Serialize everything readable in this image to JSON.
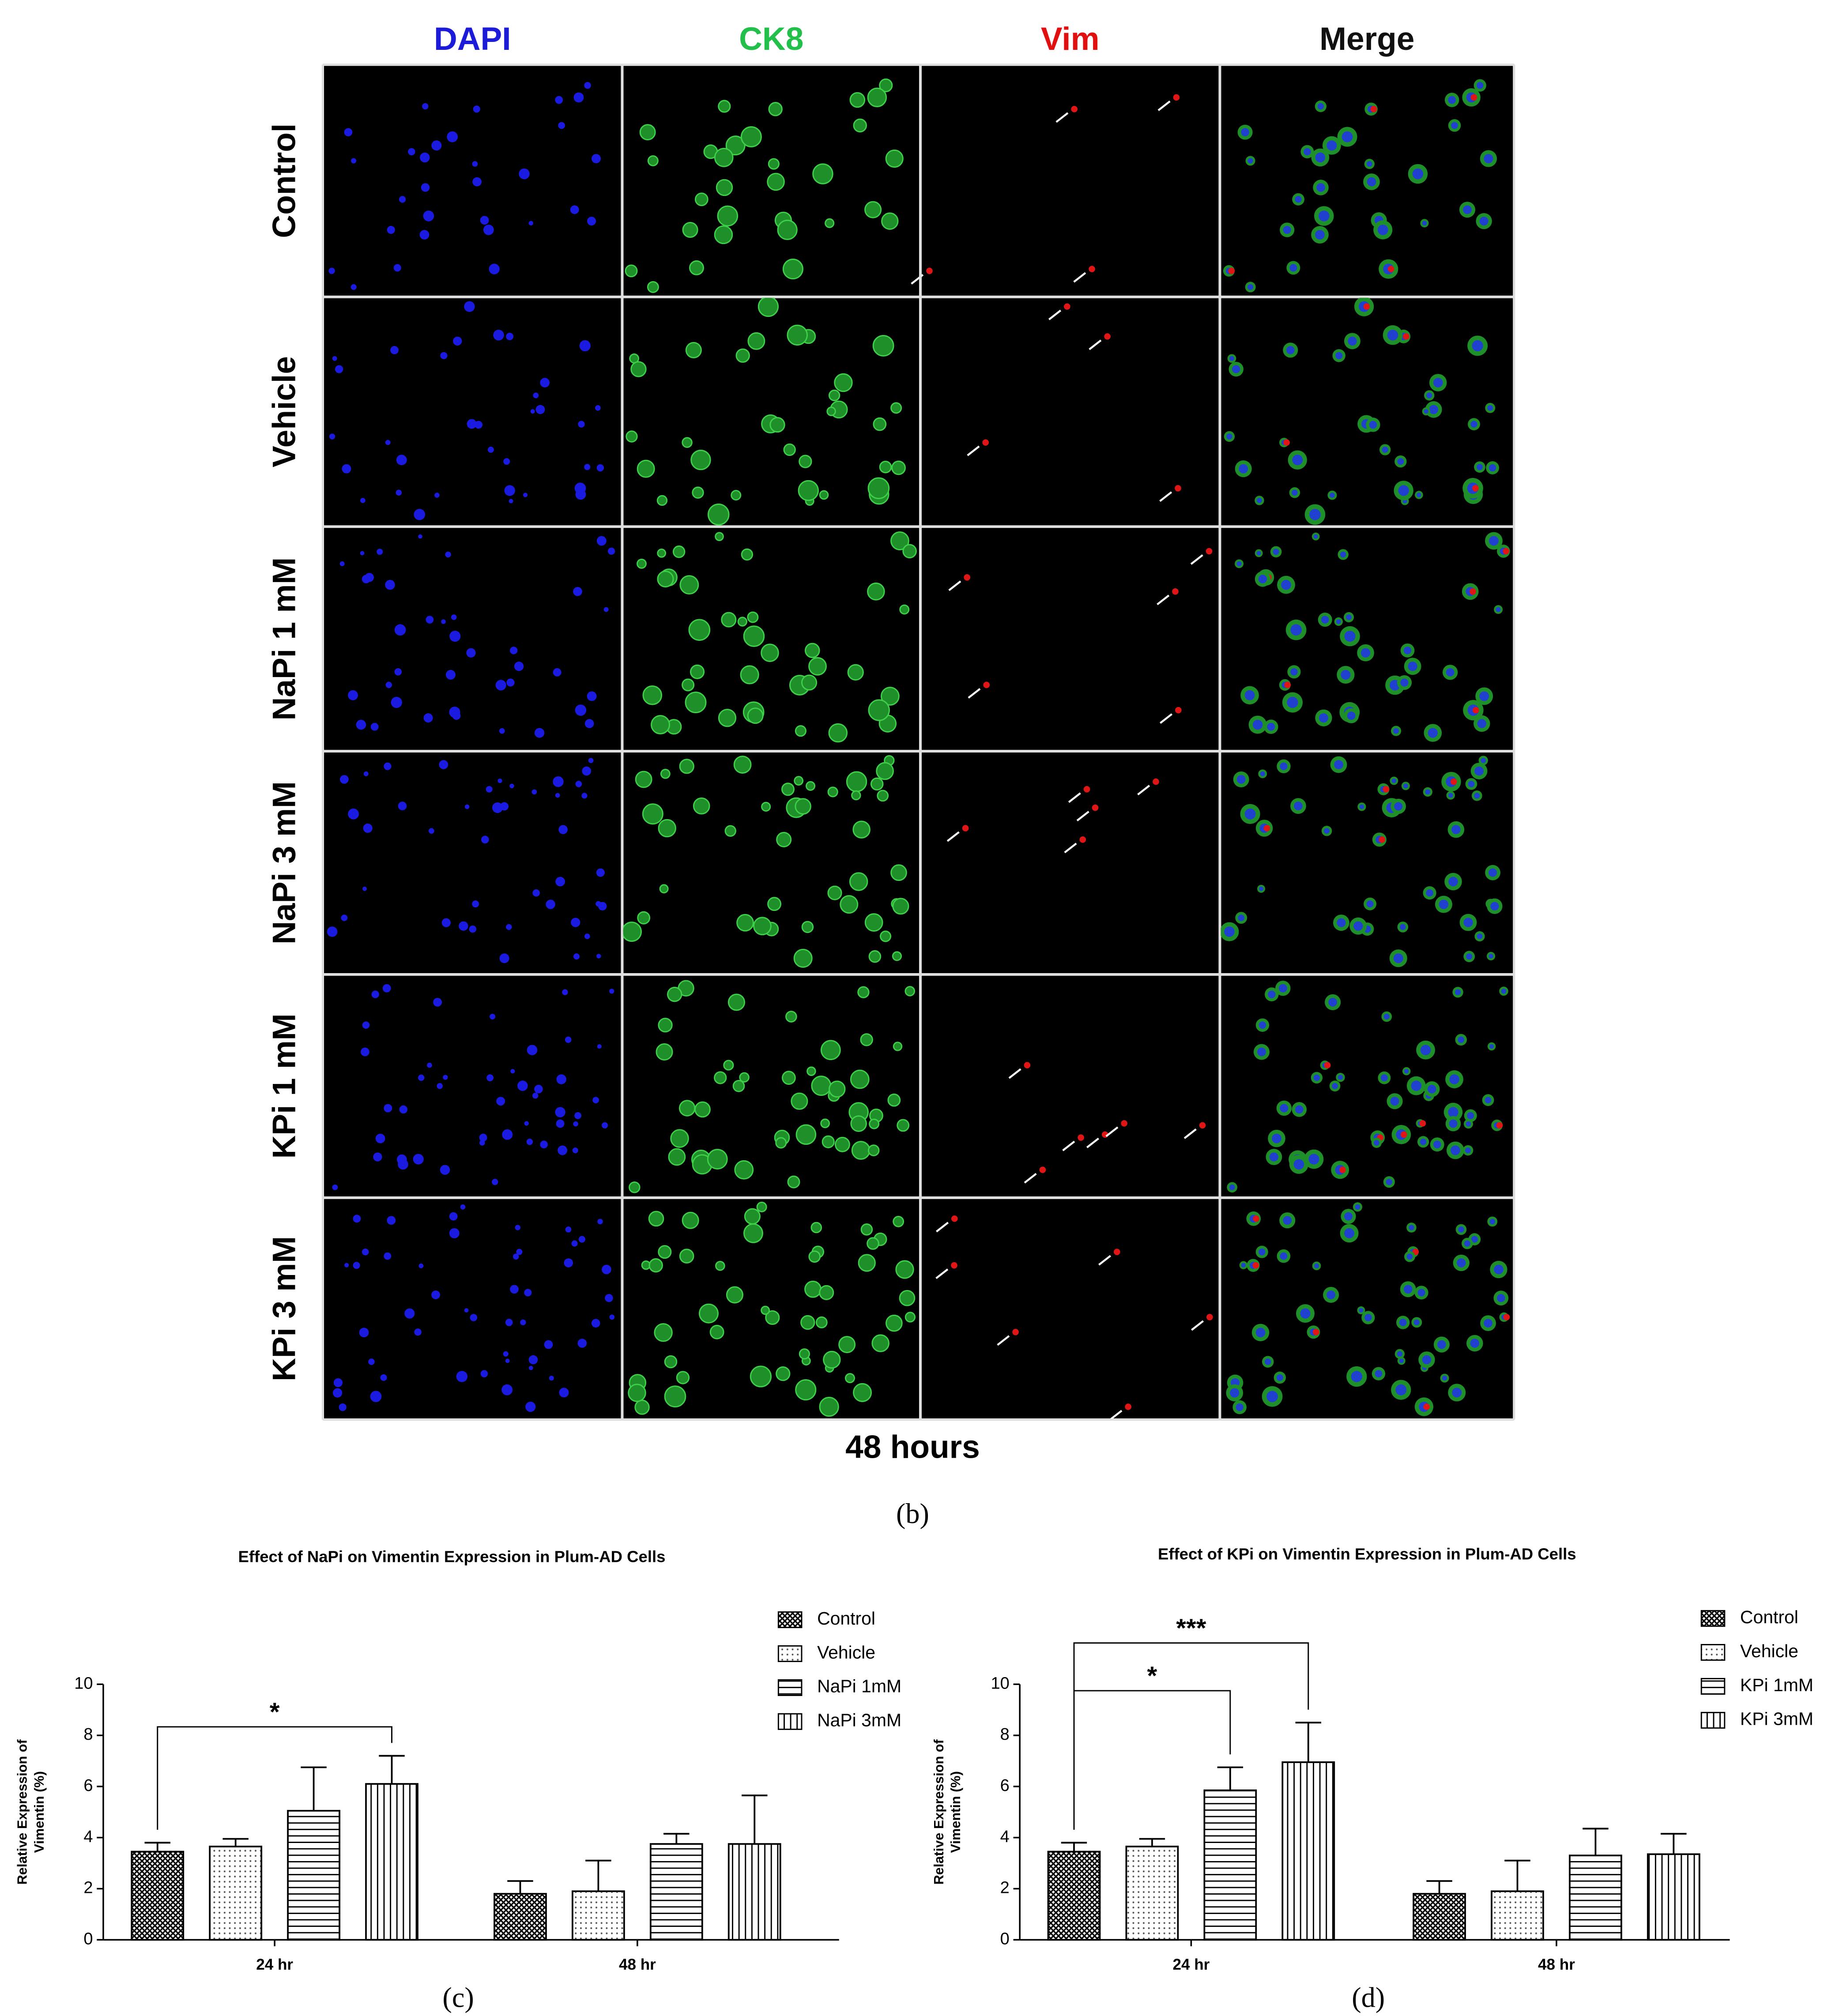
{
  "figure_b": {
    "column_headers": [
      {
        "text": "DAPI",
        "color": "#1c1cd8"
      },
      {
        "text": "CK8",
        "color": "#22c04a"
      },
      {
        "text": "Vim",
        "color": "#e01010"
      },
      {
        "text": "Merge",
        "color": "#111111"
      }
    ],
    "row_labels": [
      "Control",
      "Vehicle",
      "NaPi 1 mM",
      "NaPi 3 mM",
      "KPi 1 mM",
      "KPi 3 mM"
    ],
    "time_label": "48 hours",
    "caption": "(b)"
  },
  "chart_data": [
    {
      "type": "bar",
      "title": "Effect of NaPi on Vimentin Expression in Plum-AD Cells",
      "y_label": [
        "Relative Expression of",
        "Vimentin (%)"
      ],
      "categories": [
        "24 hr",
        "48 hr"
      ],
      "series": [
        {
          "name": "Control",
          "pattern": "cross",
          "values": [
            3.45,
            1.8
          ],
          "errors": [
            0.35,
            0.5
          ]
        },
        {
          "name": "Vehicle",
          "pattern": "dots",
          "values": [
            3.65,
            1.9
          ],
          "errors": [
            0.3,
            1.2
          ]
        },
        {
          "name": "NaPi 1mM",
          "pattern": "hlines",
          "values": [
            5.05,
            3.75
          ],
          "errors": [
            1.7,
            0.4
          ]
        },
        {
          "name": "NaPi 3mM",
          "pattern": "vlines",
          "values": [
            6.1,
            3.75
          ],
          "errors": [
            1.1,
            1.9
          ]
        }
      ],
      "ylim": [
        0,
        10
      ],
      "yticks": [
        0,
        2,
        4,
        6,
        8,
        10
      ],
      "annotations": [
        "*"
      ],
      "caption": "(c)"
    },
    {
      "type": "bar",
      "title": "Effect of KPi on Vimentin Expression in Plum-AD Cells",
      "y_label": [
        "Relative Expression of",
        "Vimentin (%)"
      ],
      "categories": [
        "24 hr",
        "48 hr"
      ],
      "series": [
        {
          "name": "Control",
          "pattern": "cross",
          "values": [
            3.45,
            1.8
          ],
          "errors": [
            0.35,
            0.5
          ]
        },
        {
          "name": "Vehicle",
          "pattern": "dots",
          "values": [
            3.65,
            1.9
          ],
          "errors": [
            0.3,
            1.2
          ]
        },
        {
          "name": "KPi 1mM",
          "pattern": "hlines",
          "values": [
            5.85,
            3.3
          ],
          "errors": [
            0.9,
            1.05
          ]
        },
        {
          "name": "KPi 3mM",
          "pattern": "vlines",
          "values": [
            6.95,
            3.35
          ],
          "errors": [
            1.55,
            0.8
          ]
        }
      ],
      "ylim": [
        0,
        10
      ],
      "yticks": [
        0,
        2,
        4,
        6,
        8,
        10
      ],
      "annotations": [
        "*",
        "***"
      ],
      "caption": "(d)"
    }
  ]
}
